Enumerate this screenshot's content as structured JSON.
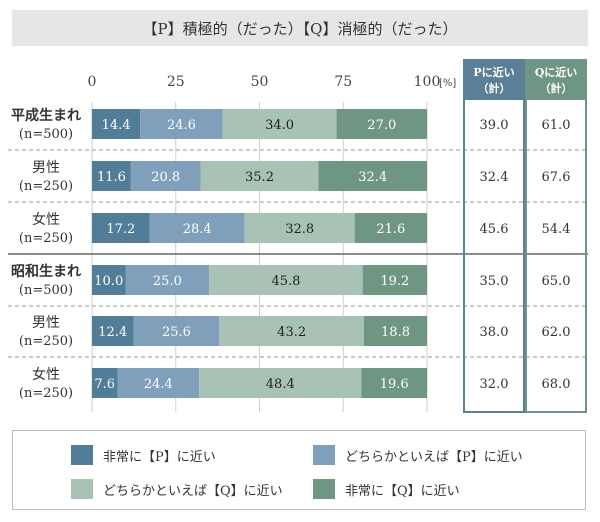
{
  "title": "【P】積極的（だった）【Q】消極的（だった）",
  "colors": {
    "very_p": "#527d99",
    "somewhat_p": "#7f9fbb",
    "somewhat_q": "#a9c2b6",
    "very_q": "#6e9682",
    "header_p_bg": "#5b7f97",
    "header_q_bg": "#6e9682"
  },
  "chart_data": {
    "type": "bar",
    "orientation": "horizontal-stacked-100",
    "x_ticks": [
      "0",
      "25",
      "50",
      "75",
      "100"
    ],
    "x_unit": "[%]",
    "xlim": [
      0,
      100
    ],
    "legend": [
      "非常に【P】に近い",
      "どちらかといえば【P】に近い",
      "どちらかといえば【Q】に近い",
      "非常に【Q】に近い"
    ],
    "totals_headers": {
      "p": "Pに近い\n（計）",
      "q": "Qに近い\n（計）"
    },
    "rows": [
      {
        "label": "平成生まれ",
        "n": "(n=500)",
        "values": [
          14.4,
          24.6,
          34.0,
          27.0
        ],
        "labels": [
          "14.4",
          "24.6",
          "34.0",
          "27.0"
        ],
        "p_total": "39.0",
        "q_total": "61.0"
      },
      {
        "label": "男性",
        "n": "(n=250)",
        "values": [
          11.6,
          20.8,
          35.2,
          32.4
        ],
        "labels": [
          "11.6",
          "20.8",
          "35.2",
          "32.4"
        ],
        "p_total": "32.4",
        "q_total": "67.6"
      },
      {
        "label": "女性",
        "n": "(n=250)",
        "values": [
          17.2,
          28.4,
          32.8,
          21.6
        ],
        "labels": [
          "17.2",
          "28.4",
          "32.8",
          "21.6"
        ],
        "p_total": "45.6",
        "q_total": "54.4"
      },
      {
        "label": "昭和生まれ",
        "n": "(n=500)",
        "values": [
          10.0,
          25.0,
          45.8,
          19.2
        ],
        "labels": [
          "10.0",
          "25.0",
          "45.8",
          "19.2"
        ],
        "p_total": "35.0",
        "q_total": "65.0"
      },
      {
        "label": "男性",
        "n": "(n=250)",
        "values": [
          12.4,
          25.6,
          43.2,
          18.8
        ],
        "labels": [
          "12.4",
          "25.6",
          "43.2",
          "18.8"
        ],
        "p_total": "38.0",
        "q_total": "62.0"
      },
      {
        "label": "女性",
        "n": "(n=250)",
        "values": [
          7.6,
          24.4,
          48.4,
          19.6
        ],
        "labels": [
          "7.6",
          "24.4",
          "48.4",
          "19.6"
        ],
        "p_total": "32.0",
        "q_total": "68.0"
      }
    ]
  }
}
